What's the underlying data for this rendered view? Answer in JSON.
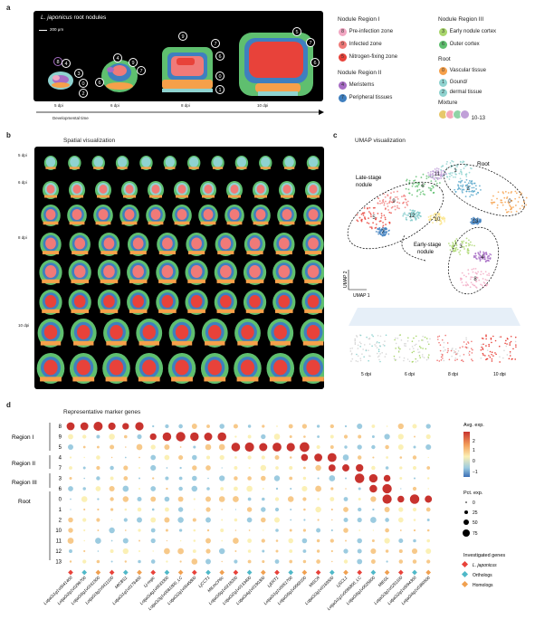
{
  "panel_a": {
    "letter": "a",
    "title_italic": "L. japonicus",
    "title_rest": " root nodules",
    "scale": "200 μm",
    "timepoints": [
      "5 dpi",
      "6 dpi",
      "8 dpi",
      "10 dpi"
    ],
    "axis": "Developmental time",
    "legend": {
      "region1_title": "Nodule Region I",
      "region1": [
        {
          "num": "8",
          "label": "Pre-infection zone",
          "color": "#f2a7c3"
        },
        {
          "num": "9",
          "label": "Infected zone",
          "color": "#f07a78"
        },
        {
          "num": "5",
          "label": "Nitrogen-fixing zone",
          "color": "#e8423a"
        }
      ],
      "region2_title": "Nodule Region II",
      "region2": [
        {
          "num": "4",
          "label": "Meristems",
          "color": "#a66cc4"
        },
        {
          "num": "7",
          "label": "Peripheral tissues",
          "color": "#3f7fbf"
        }
      ],
      "region3_title": "Nodule Region III",
      "region3": [
        {
          "num": "3",
          "label": "Early nodule cortex",
          "color": "#a9d66c"
        },
        {
          "num": "6",
          "label": "Outer cortex",
          "color": "#5fbf6f"
        }
      ],
      "root_title": "Root",
      "root": [
        {
          "num": "0",
          "label": "Vascular tissue",
          "color": "#f6a04a"
        },
        {
          "num": "1",
          "label": "Gound/",
          "color": "#8fd3d0"
        },
        {
          "num": "2",
          "label": "dermal tissue",
          "color": "#8fd3d0"
        }
      ],
      "mixture_title": "Mixture",
      "mixture_label": "10-13"
    }
  },
  "panel_b": {
    "letter": "b",
    "title": "Spatial visualization",
    "rows": [
      "5 dpi",
      "6 dpi",
      "8 dpi",
      "10 dpi"
    ]
  },
  "panel_c": {
    "letter": "c",
    "title": "UMAP visualization",
    "labels": {
      "late": "Late-stage",
      "late2": "nodule",
      "root": "Root",
      "early": "Early-stage",
      "early2": "nodule"
    },
    "axis_x": "UMAP 1",
    "axis_y": "UMAP 2",
    "cluster_nums": [
      "0",
      "1",
      "2",
      "3",
      "4",
      "5",
      "6",
      "7",
      "8",
      "9",
      "10",
      "11",
      "12",
      "13"
    ],
    "time_labels": [
      "5 dpi",
      "6 dpi",
      "8 dpi",
      "10 dpi"
    ]
  },
  "panel_d": {
    "letter": "d",
    "title": "Representative marker genes",
    "groups": [
      "Region I",
      "Region II",
      "Region III",
      "Root"
    ],
    "rows": [
      "8",
      "9",
      "5",
      "4",
      "7",
      "3",
      "6",
      "0",
      "1",
      "2",
      "10",
      "11",
      "12",
      "13"
    ],
    "genes": [
      "LotjaGi1g1v0041400",
      "LotjaGi2g1v0296700",
      "LotjaGi5g1v0161500",
      "LotjaGi3g1v0411100",
      "MtCBS1",
      "LotjaGi1g1v0176400",
      "Lj-nrgic",
      "LotjaGi4g1v0033300",
      "LotjaGi3g1v0081800_LC",
      "LotjaGi2g1v0045800",
      "LjCCT1",
      "MtLmCP6c",
      "LotjaGi5g1v0218200",
      "LotjaGi2g1v0133400",
      "LotjaGi4g1v0190300",
      "LjERT1",
      "LotjaGi1g1v0051700",
      "LotjaGi5g1v0069100",
      "MtSCR",
      "LotjaGi3g1v0169500",
      "LjSCL1",
      "LotjaGi1g1v0095800_LC",
      "LotjaGi5g1v0025600",
      "MtEGL",
      "LotjaGi3g1v0251100",
      "LotjaGi2g1v0094300",
      "LotjaGi4g1v0380500"
    ],
    "color_legend_title": "Avg. exp.",
    "color_ticks": [
      "2",
      "1",
      "0",
      "−1"
    ],
    "size_legend_title": "Pct. exp.",
    "size_ticks": [
      "0",
      "25",
      "50",
      "75"
    ],
    "gene_legend_title": "Investigated genes",
    "gene_legend": [
      {
        "label": "L. japonicus",
        "color": "#e8423a"
      },
      {
        "label": "Orthologs",
        "color": "#4fb8c8"
      },
      {
        "label": "Homologs",
        "color": "#f0a050"
      }
    ]
  }
}
